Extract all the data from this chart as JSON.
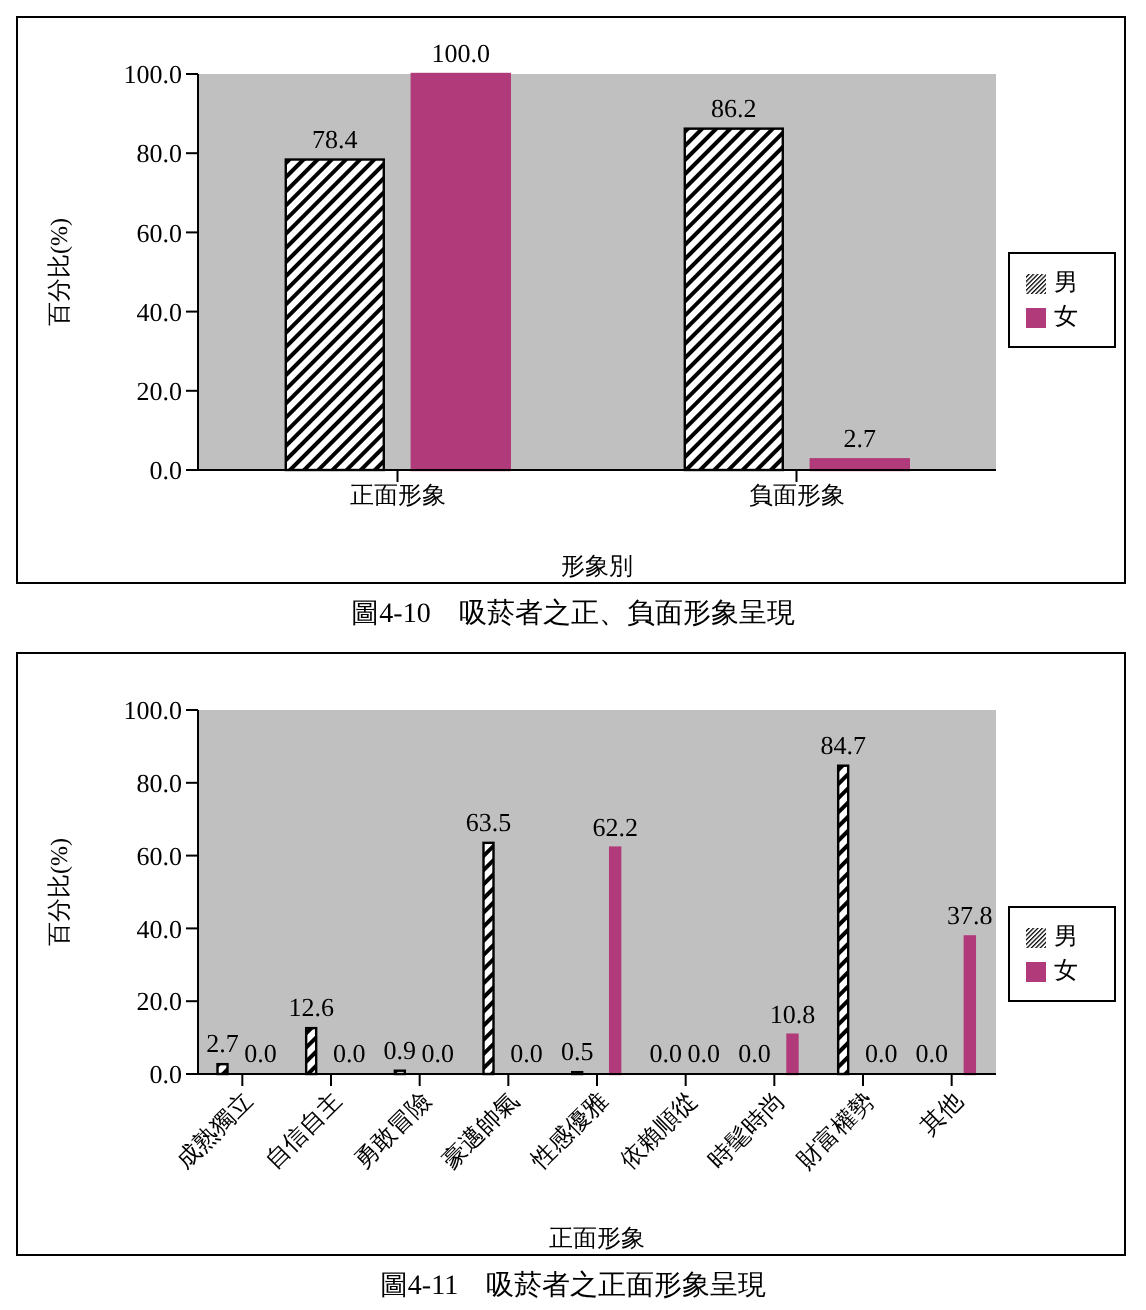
{
  "chart_data": [
    {
      "type": "bar",
      "categories": [
        "正面形象",
        "負面形象"
      ],
      "xlabel": "形象別",
      "ylabel": "百分比(%)",
      "ylim": [
        0,
        100
      ],
      "yticks": [
        {
          "value": 0,
          "label": "0.0"
        },
        {
          "value": 20,
          "label": "20.0"
        },
        {
          "value": 40,
          "label": "40.0"
        },
        {
          "value": 60,
          "label": "60.0"
        },
        {
          "value": 80,
          "label": "80.0"
        },
        {
          "value": 100,
          "label": "100.0"
        }
      ],
      "grid": false,
      "legend": "right",
      "series": [
        {
          "name": "男",
          "color": "#000000",
          "values": [
            78.4,
            86.2
          ],
          "value_labels": [
            "78.4",
            "86.2"
          ]
        },
        {
          "name": "女",
          "color": "#b03a7a",
          "values": [
            100.0,
            2.7
          ],
          "value_labels": [
            "100.0",
            "2.7"
          ]
        }
      ],
      "annotations": [
        "圖4-10　吸菸者之正、負面形象呈現"
      ]
    },
    {
      "type": "bar",
      "categories": [
        "成熟獨立",
        "自信自主",
        "勇敢冒險",
        "豪邁帥氣",
        "性感優雅",
        "依賴順從",
        "時髦時尚",
        "財富權勢",
        "其他"
      ],
      "xlabel": "正面形象",
      "ylabel": "百分比(%)",
      "ylim": [
        0,
        100
      ],
      "yticks": [
        {
          "value": 0,
          "label": "0.0"
        },
        {
          "value": 20,
          "label": "20.0"
        },
        {
          "value": 40,
          "label": "40.0"
        },
        {
          "value": 60,
          "label": "60.0"
        },
        {
          "value": 80,
          "label": "80.0"
        },
        {
          "value": 100,
          "label": "100.0"
        }
      ],
      "grid": false,
      "legend": "right",
      "series": [
        {
          "name": "男",
          "color": "#000000",
          "values": [
            2.7,
            12.6,
            0.9,
            63.5,
            0.5,
            0.0,
            0.0,
            84.7,
            0.0
          ],
          "value_labels": [
            "2.7",
            "12.6",
            "0.9",
            "63.5",
            "0.5",
            "0.0",
            "0.0",
            "84.7",
            "0.0"
          ]
        },
        {
          "name": "女",
          "color": "#b03a7a",
          "values": [
            0.0,
            0.0,
            0.0,
            0.0,
            62.2,
            0.0,
            10.8,
            0.0,
            37.8
          ],
          "value_labels": [
            "0.0",
            "0.0",
            "0.0",
            "0.0",
            "62.2",
            "0.0",
            "10.8",
            "0.0",
            "37.8"
          ]
        }
      ],
      "annotations": [
        "圖4-11　吸菸者之正面形象呈現"
      ]
    }
  ]
}
